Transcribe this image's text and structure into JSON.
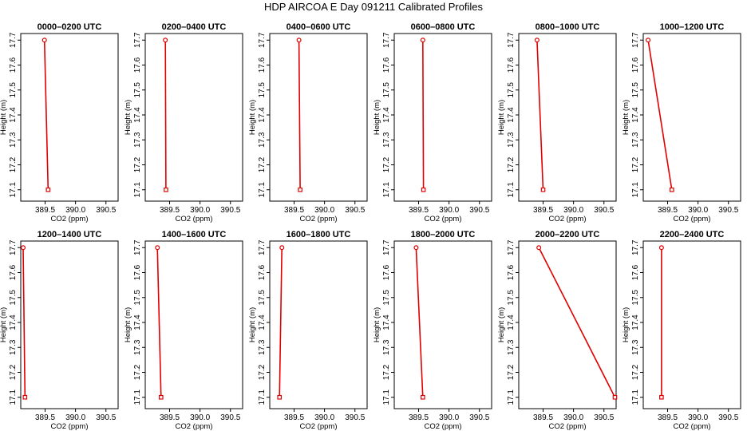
{
  "page": {
    "title": "HDP AIRCOA E  Day 091211  Calibrated Profiles"
  },
  "colors": {
    "series": "#e00000",
    "axis": "#000000",
    "background": "#ffffff"
  },
  "chart_data": [
    {
      "type": "line",
      "title": "0000–0200 UTC",
      "xlabel": "CO2 (ppm)",
      "ylabel": "Height (m)",
      "xlim": [
        389.1,
        390.7
      ],
      "ylim": [
        17.08,
        17.72
      ],
      "xticks": [
        "389.5",
        "390.0",
        "390.5"
      ],
      "yticks": [
        "17.1",
        "17.2",
        "17.3",
        "17.4",
        "17.5",
        "17.6",
        "17.7"
      ],
      "grid": false,
      "points": [
        {
          "x": 389.49,
          "y": 17.7
        },
        {
          "x": 389.55,
          "y": 17.1
        }
      ]
    },
    {
      "type": "line",
      "title": "0200–0400 UTC",
      "xlabel": "CO2 (ppm)",
      "ylabel": "Height (m)",
      "xlim": [
        389.1,
        390.7
      ],
      "ylim": [
        17.08,
        17.72
      ],
      "xticks": [
        "389.5",
        "390.0",
        "390.5"
      ],
      "yticks": [
        "17.1",
        "17.2",
        "17.3",
        "17.4",
        "17.5",
        "17.6",
        "17.7"
      ],
      "grid": false,
      "points": [
        {
          "x": 389.43,
          "y": 17.7
        },
        {
          "x": 389.44,
          "y": 17.1
        }
      ]
    },
    {
      "type": "line",
      "title": "0400–0600 UTC",
      "xlabel": "CO2 (ppm)",
      "ylabel": "Height (m)",
      "xlim": [
        389.1,
        390.7
      ],
      "ylim": [
        17.08,
        17.72
      ],
      "xticks": [
        "389.5",
        "390.0",
        "390.5"
      ],
      "yticks": [
        "17.1",
        "17.2",
        "17.3",
        "17.4",
        "17.5",
        "17.6",
        "17.7"
      ],
      "grid": false,
      "points": [
        {
          "x": 389.58,
          "y": 17.7
        },
        {
          "x": 389.6,
          "y": 17.1
        }
      ]
    },
    {
      "type": "line",
      "title": "0600–0800 UTC",
      "xlabel": "CO2 (ppm)",
      "ylabel": "Height (m)",
      "xlim": [
        389.1,
        390.7
      ],
      "ylim": [
        17.08,
        17.72
      ],
      "xticks": [
        "389.5",
        "390.0",
        "390.5"
      ],
      "yticks": [
        "17.1",
        "17.2",
        "17.3",
        "17.4",
        "17.5",
        "17.6",
        "17.7"
      ],
      "grid": false,
      "points": [
        {
          "x": 389.57,
          "y": 17.7
        },
        {
          "x": 389.58,
          "y": 17.1
        }
      ]
    },
    {
      "type": "line",
      "title": "0800–1000 UTC",
      "xlabel": "CO2 (ppm)",
      "ylabel": "Height (m)",
      "xlim": [
        389.1,
        390.7
      ],
      "ylim": [
        17.08,
        17.72
      ],
      "xticks": [
        "389.5",
        "390.0",
        "390.5"
      ],
      "yticks": [
        "17.1",
        "17.2",
        "17.3",
        "17.4",
        "17.5",
        "17.6",
        "17.7"
      ],
      "grid": false,
      "points": [
        {
          "x": 389.4,
          "y": 17.7
        },
        {
          "x": 389.5,
          "y": 17.1
        }
      ]
    },
    {
      "type": "line",
      "title": "1000–1200 UTC",
      "xlabel": "CO2 (ppm)",
      "ylabel": "Height (m)",
      "xlim": [
        389.1,
        390.7
      ],
      "ylim": [
        17.08,
        17.72
      ],
      "xticks": [
        "389.5",
        "390.0",
        "390.5"
      ],
      "yticks": [
        "17.1",
        "17.2",
        "17.3",
        "17.4",
        "17.5",
        "17.6",
        "17.7"
      ],
      "grid": false,
      "points": [
        {
          "x": 389.18,
          "y": 17.7
        },
        {
          "x": 389.57,
          "y": 17.1
        }
      ]
    },
    {
      "type": "line",
      "title": "1200–1400 UTC",
      "xlabel": "CO2 (ppm)",
      "ylabel": "Height (m)",
      "xlim": [
        389.1,
        390.7
      ],
      "ylim": [
        17.08,
        17.72
      ],
      "xticks": [
        "389.5",
        "390.0",
        "390.5"
      ],
      "yticks": [
        "17.1",
        "17.2",
        "17.3",
        "17.4",
        "17.5",
        "17.6",
        "17.7"
      ],
      "grid": false,
      "points": [
        {
          "x": 389.14,
          "y": 17.7
        },
        {
          "x": 389.17,
          "y": 17.1
        }
      ]
    },
    {
      "type": "line",
      "title": "1400–1600 UTC",
      "xlabel": "CO2 (ppm)",
      "ylabel": "Height (m)",
      "xlim": [
        389.1,
        390.7
      ],
      "ylim": [
        17.08,
        17.72
      ],
      "xticks": [
        "389.5",
        "390.0",
        "390.5"
      ],
      "yticks": [
        "17.1",
        "17.2",
        "17.3",
        "17.4",
        "17.5",
        "17.6",
        "17.7"
      ],
      "grid": false,
      "points": [
        {
          "x": 389.3,
          "y": 17.7
        },
        {
          "x": 389.36,
          "y": 17.1
        }
      ]
    },
    {
      "type": "line",
      "title": "1600–1800 UTC",
      "xlabel": "CO2 (ppm)",
      "ylabel": "Height (m)",
      "xlim": [
        389.1,
        390.7
      ],
      "ylim": [
        17.08,
        17.72
      ],
      "xticks": [
        "389.5",
        "390.0",
        "390.5"
      ],
      "yticks": [
        "17.1",
        "17.2",
        "17.3",
        "17.4",
        "17.5",
        "17.6",
        "17.7"
      ],
      "grid": false,
      "points": [
        {
          "x": 389.3,
          "y": 17.7
        },
        {
          "x": 389.26,
          "y": 17.1
        }
      ]
    },
    {
      "type": "line",
      "title": "1800–2000 UTC",
      "xlabel": "CO2 (ppm)",
      "ylabel": "Height (m)",
      "xlim": [
        389.1,
        390.7
      ],
      "ylim": [
        17.08,
        17.72
      ],
      "xticks": [
        "389.5",
        "390.0",
        "390.5"
      ],
      "yticks": [
        "17.1",
        "17.2",
        "17.3",
        "17.4",
        "17.5",
        "17.6",
        "17.7"
      ],
      "grid": false,
      "points": [
        {
          "x": 389.46,
          "y": 17.7
        },
        {
          "x": 389.57,
          "y": 17.1
        }
      ]
    },
    {
      "type": "line",
      "title": "2000–2200 UTC",
      "xlabel": "CO2 (ppm)",
      "ylabel": "Height (m)",
      "xlim": [
        389.1,
        390.7
      ],
      "ylim": [
        17.08,
        17.72
      ],
      "xticks": [
        "389.5",
        "390.0",
        "390.5"
      ],
      "yticks": [
        "17.1",
        "17.2",
        "17.3",
        "17.4",
        "17.5",
        "17.6",
        "17.7"
      ],
      "grid": false,
      "points": [
        {
          "x": 389.43,
          "y": 17.7
        },
        {
          "x": 390.68,
          "y": 17.1
        }
      ]
    },
    {
      "type": "line",
      "title": "2200–2400 UTC",
      "xlabel": "CO2 (ppm)",
      "ylabel": "Height (m)",
      "xlim": [
        389.1,
        390.7
      ],
      "ylim": [
        17.08,
        17.72
      ],
      "xticks": [
        "389.5",
        "390.0",
        "390.5"
      ],
      "yticks": [
        "17.1",
        "17.2",
        "17.3",
        "17.4",
        "17.5",
        "17.6",
        "17.7"
      ],
      "grid": false,
      "points": [
        {
          "x": 389.4,
          "y": 17.7
        },
        {
          "x": 389.4,
          "y": 17.1
        }
      ]
    }
  ]
}
